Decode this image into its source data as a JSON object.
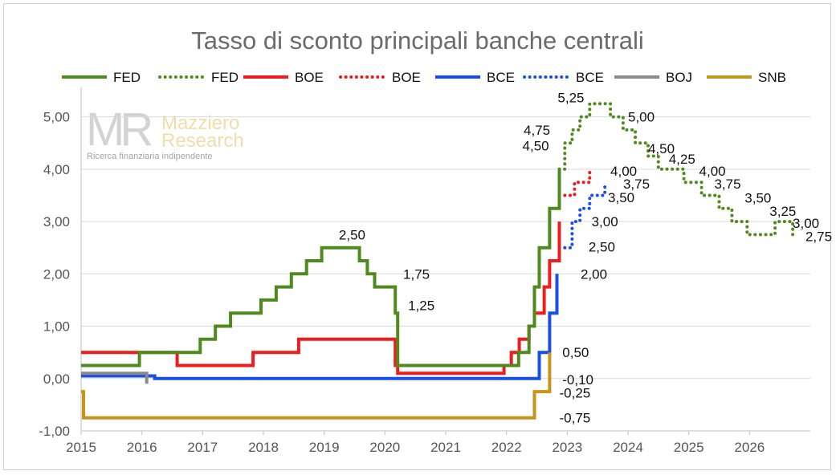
{
  "chart_data": {
    "type": "line",
    "title": "Tasso di sconto principali banche centrali",
    "xlabel": "",
    "ylabel": "",
    "xlim": [
      2015.0,
      2027.0
    ],
    "ylim": [
      -1.0,
      5.5
    ],
    "x_ticks": [
      "2015",
      "2016",
      "2017",
      "2018",
      "2019",
      "2020",
      "2021",
      "2022",
      "2023",
      "2024",
      "2025",
      "2026"
    ],
    "y_ticks": [
      "-1,00",
      "0,00",
      "1,00",
      "2,00",
      "3,00",
      "4,00",
      "5,00"
    ],
    "y_tick_values": [
      -1,
      0,
      1,
      2,
      3,
      4,
      5
    ],
    "grid": "horizontal",
    "legend_position": "top",
    "series": [
      {
        "name": "FED",
        "style": "solid",
        "color": "#4f8a1c",
        "x": [
          2015.0,
          2015.96,
          2016.96,
          2017.21,
          2017.46,
          2017.96,
          2018.21,
          2018.46,
          2018.71,
          2018.96,
          2019.58,
          2019.71,
          2019.83,
          2020.17,
          2020.21,
          2022.2,
          2022.37,
          2022.46,
          2022.54,
          2022.71,
          2022.87
        ],
        "y": [
          0.25,
          0.5,
          0.75,
          1.0,
          1.25,
          1.5,
          1.75,
          2.0,
          2.25,
          2.5,
          2.25,
          2.0,
          1.75,
          1.25,
          0.25,
          0.5,
          1.0,
          1.75,
          2.5,
          3.25,
          4.0
        ]
      },
      {
        "name": "FED",
        "style": "dotted",
        "color": "#4f8a1c",
        "x": [
          2022.87,
          2022.96,
          2023.08,
          2023.21,
          2023.37,
          2023.71,
          2023.92,
          2024.12,
          2024.33,
          2024.5,
          2024.92,
          2025.21,
          2025.5,
          2025.71,
          2025.96,
          2026.42,
          2026.71
        ],
        "y": [
          4.0,
          4.5,
          4.75,
          5.0,
          5.25,
          5.0,
          4.75,
          4.5,
          4.25,
          4.0,
          3.75,
          3.5,
          3.25,
          3.0,
          2.75,
          3.0,
          2.75
        ]
      },
      {
        "name": "BOE",
        "style": "solid",
        "color": "#ee1c1c",
        "x": [
          2015.0,
          2016.58,
          2017.83,
          2018.58,
          2020.17,
          2020.21,
          2021.96,
          2022.08,
          2022.21,
          2022.37,
          2022.46,
          2022.62,
          2022.71,
          2022.87
        ],
        "y": [
          0.5,
          0.25,
          0.5,
          0.75,
          0.25,
          0.1,
          0.25,
          0.5,
          0.75,
          1.0,
          1.25,
          1.75,
          2.25,
          3.0
        ]
      },
      {
        "name": "BOE",
        "style": "dotted",
        "color": "#ee1c1c",
        "x": [
          2022.96,
          2023.12,
          2023.37
        ],
        "y": [
          3.5,
          3.75,
          4.0
        ]
      },
      {
        "name": "BCE",
        "style": "solid",
        "color": "#1a4fe6",
        "x": [
          2015.0,
          2016.21,
          2022.54,
          2022.71,
          2022.83
        ],
        "y": [
          0.05,
          0.0,
          0.5,
          1.25,
          2.0
        ]
      },
      {
        "name": "BCE",
        "style": "dotted",
        "color": "#1a4fe6",
        "x": [
          2022.96,
          2023.08,
          2023.21,
          2023.37,
          2023.62
        ],
        "y": [
          2.5,
          3.0,
          3.25,
          3.5,
          3.75
        ]
      },
      {
        "name": "BOJ",
        "style": "solid",
        "color": "#8a8a8a",
        "x": [
          2015.0,
          2016.08
        ],
        "y": [
          0.1,
          -0.1
        ]
      },
      {
        "name": "SNB",
        "style": "solid",
        "color": "#c8951a",
        "x": [
          2015.0,
          2015.04,
          2022.46,
          2022.71
        ],
        "y": [
          -0.25,
          -0.75,
          -0.25,
          0.5
        ]
      }
    ],
    "annotations": [
      {
        "text": "2,50",
        "x": 2019.46,
        "y": 2.5,
        "anchor": "middle",
        "dy": -10
      },
      {
        "text": "1,75",
        "x": 2020.3,
        "y": 2.0,
        "anchor": "start",
        "dy": 6
      },
      {
        "text": "1,25",
        "x": 2020.38,
        "y": 1.4,
        "anchor": "start",
        "dy": 6
      },
      {
        "text": "0,50",
        "x": 2022.92,
        "y": 0.5,
        "anchor": "start",
        "dy": 6
      },
      {
        "text": "-0,10",
        "x": 2022.92,
        "y": -0.02,
        "anchor": "start",
        "dy": 6
      },
      {
        "text": "-0,25",
        "x": 2022.87,
        "y": -0.27,
        "anchor": "start",
        "dy": 6
      },
      {
        "text": "-0,75",
        "x": 2022.87,
        "y": -0.75,
        "anchor": "start",
        "dy": 6
      },
      {
        "text": "2,00",
        "x": 2023.22,
        "y": 2.0,
        "anchor": "start",
        "dy": 6
      },
      {
        "text": "2,50",
        "x": 2023.35,
        "y": 2.52,
        "anchor": "start",
        "dy": 6
      },
      {
        "text": "3,00",
        "x": 2023.4,
        "y": 3.0,
        "anchor": "start",
        "dy": 6
      },
      {
        "text": "3,50",
        "x": 2023.67,
        "y": 3.46,
        "anchor": "start",
        "dy": 6
      },
      {
        "text": "3,75",
        "x": 2023.92,
        "y": 3.72,
        "anchor": "start",
        "dy": 6
      },
      {
        "text": "4,00",
        "x": 2023.71,
        "y": 3.97,
        "anchor": "start",
        "dy": 6
      },
      {
        "text": "4,50",
        "x": 2022.7,
        "y": 4.45,
        "anchor": "end",
        "dy": 6
      },
      {
        "text": "4,75",
        "x": 2022.72,
        "y": 4.75,
        "anchor": "end",
        "dy": 6
      },
      {
        "text": "5,25",
        "x": 2023.28,
        "y": 5.25,
        "anchor": "end",
        "dy": -2
      },
      {
        "text": "5,00",
        "x": 2024.0,
        "y": 5.0,
        "anchor": "start",
        "dy": 6
      },
      {
        "text": "4,50",
        "x": 2024.33,
        "y": 4.4,
        "anchor": "start",
        "dy": 6
      },
      {
        "text": "4,25",
        "x": 2024.67,
        "y": 4.2,
        "anchor": "start",
        "dy": 6
      },
      {
        "text": "4,00",
        "x": 2025.17,
        "y": 3.97,
        "anchor": "start",
        "dy": 6
      },
      {
        "text": "3,75",
        "x": 2025.42,
        "y": 3.72,
        "anchor": "start",
        "dy": 6
      },
      {
        "text": "3,50",
        "x": 2025.92,
        "y": 3.45,
        "anchor": "start",
        "dy": 6
      },
      {
        "text": "3,25",
        "x": 2026.33,
        "y": 3.2,
        "anchor": "start",
        "dy": 6
      },
      {
        "text": "3,00",
        "x": 2026.71,
        "y": 2.97,
        "anchor": "start",
        "dy": 6
      },
      {
        "text": "2,75",
        "x": 2026.92,
        "y": 2.72,
        "anchor": "start",
        "dy": 6
      }
    ]
  },
  "watermark": {
    "logo": "MR",
    "line1": "Mazziero",
    "line2": "Research",
    "tagline": "Ricerca finanziaria indipendente"
  }
}
